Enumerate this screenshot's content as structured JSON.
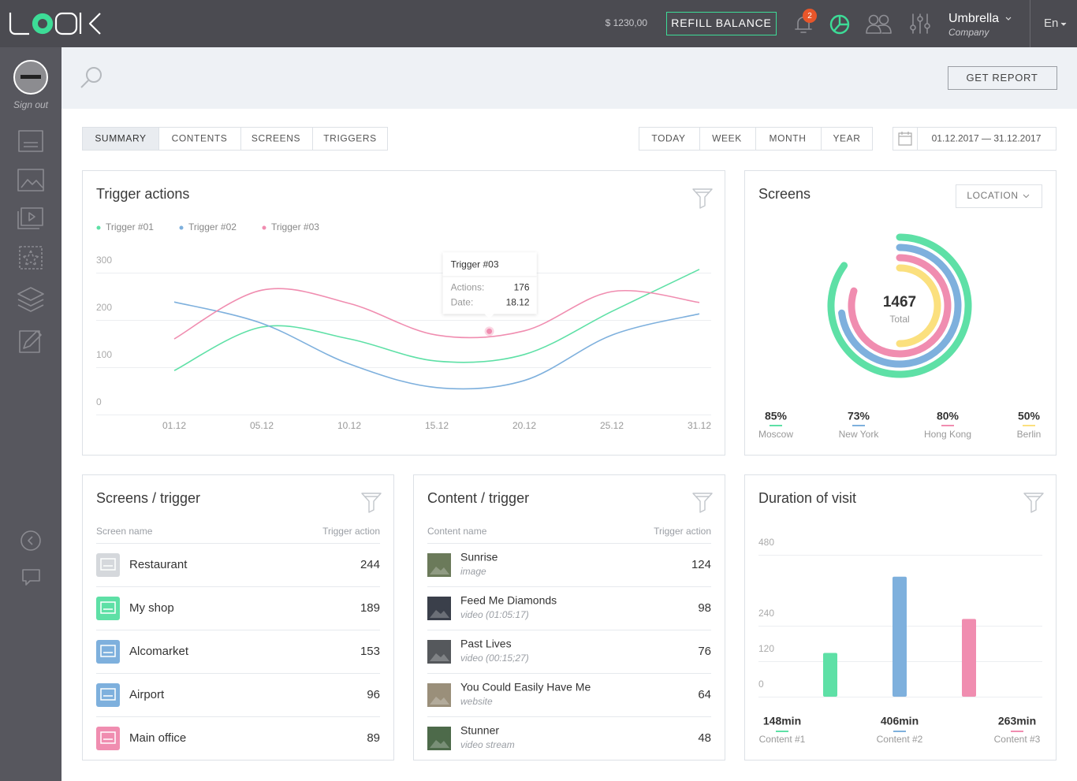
{
  "header": {
    "balance": "$ 1230,00",
    "refill_button": "REFILL BALANCE",
    "notifications": 2,
    "user": "Umbrella",
    "role": "Company",
    "language": "En"
  },
  "sidebar": {
    "sign_out": "Sign out"
  },
  "toolbar": {
    "report_button": "GET REPORT"
  },
  "tabs": [
    "SUMMARY",
    "CONTENTS",
    "SCREENS",
    "TRIGGERS"
  ],
  "periods": [
    "TODAY",
    "WEEK",
    "MONTH",
    "YEAR"
  ],
  "date_range": "01.12.2017 — 31.12.2017",
  "chart_data": [
    {
      "type": "line",
      "title": "Trigger actions",
      "categories": [
        "01.12",
        "05.12",
        "10.12",
        "15.12",
        "20.12",
        "25.12",
        "31.12"
      ],
      "series": [
        {
          "name": "Trigger #01",
          "color": "#5ee0a6",
          "values": [
            93,
            185,
            160,
            113,
            127,
            218,
            307
          ]
        },
        {
          "name": "Trigger #02",
          "color": "#7eb0dd",
          "values": [
            238,
            193,
            107,
            57,
            72,
            168,
            213
          ]
        },
        {
          "name": "Trigger #03",
          "color": "#f08db0",
          "values": [
            160,
            263,
            235,
            168,
            177,
            260,
            237
          ]
        }
      ],
      "ylim": [
        0,
        300
      ],
      "yticks": [
        0,
        100,
        200,
        300
      ],
      "grid": true,
      "legend": "top-left",
      "tooltip": {
        "title": "Trigger #03",
        "rows": [
          {
            "label": "Actions:",
            "value": 176
          },
          {
            "label": "Date:",
            "value": "18.12"
          }
        ]
      }
    },
    {
      "type": "radial",
      "title": "Screens",
      "filter": "LOCATION",
      "total": 1467,
      "total_label": "Total",
      "categories": [
        "Moscow",
        "New York",
        "Hong Kong",
        "Berlin"
      ],
      "values": [
        85,
        73,
        80,
        50
      ],
      "value_labels": [
        "85%",
        "73%",
        "80%",
        "50%"
      ],
      "colors": [
        "#5ee0a6",
        "#7eb0dd",
        "#f08db0",
        "#fbe07e"
      ]
    },
    {
      "type": "bar",
      "title": "Duration of visit",
      "categories": [
        "Content #1",
        "Content #2",
        "Content #3"
      ],
      "values": [
        148,
        406,
        263
      ],
      "value_labels": [
        "148min",
        "406min",
        "263min"
      ],
      "colors": [
        "#5ee0a6",
        "#7eb0dd",
        "#f08db0"
      ],
      "ylim": [
        0,
        480
      ],
      "yticks": [
        0,
        120,
        240,
        480
      ],
      "grid": true
    }
  ],
  "screens_table": {
    "title": "Screens / trigger",
    "columns": [
      "Screen name",
      "Trigger action"
    ],
    "rows": [
      {
        "name": "Restaurant",
        "value": 244,
        "color": "#d5d8dc"
      },
      {
        "name": "My shop",
        "value": 189,
        "color": "#5ee0a6"
      },
      {
        "name": "Alcomarket",
        "value": 153,
        "color": "#7eb0dd"
      },
      {
        "name": "Airport",
        "value": 96,
        "color": "#7eb0dd"
      },
      {
        "name": "Main office",
        "value": 89,
        "color": "#f08db0"
      }
    ]
  },
  "content_table": {
    "title": "Content / trigger",
    "columns": [
      "Content name",
      "Trigger action"
    ],
    "rows": [
      {
        "name": "Sunrise",
        "kind": "image",
        "value": 124
      },
      {
        "name": "Feed Me Diamonds",
        "kind": "video (01:05:17)",
        "value": 98
      },
      {
        "name": "Past Lives",
        "kind": "video (00:15;27)",
        "value": 76
      },
      {
        "name": "You Could Easily Have Me",
        "kind": "website",
        "value": 64
      },
      {
        "name": "Stunner",
        "kind": "video stream",
        "value": 48
      }
    ]
  }
}
